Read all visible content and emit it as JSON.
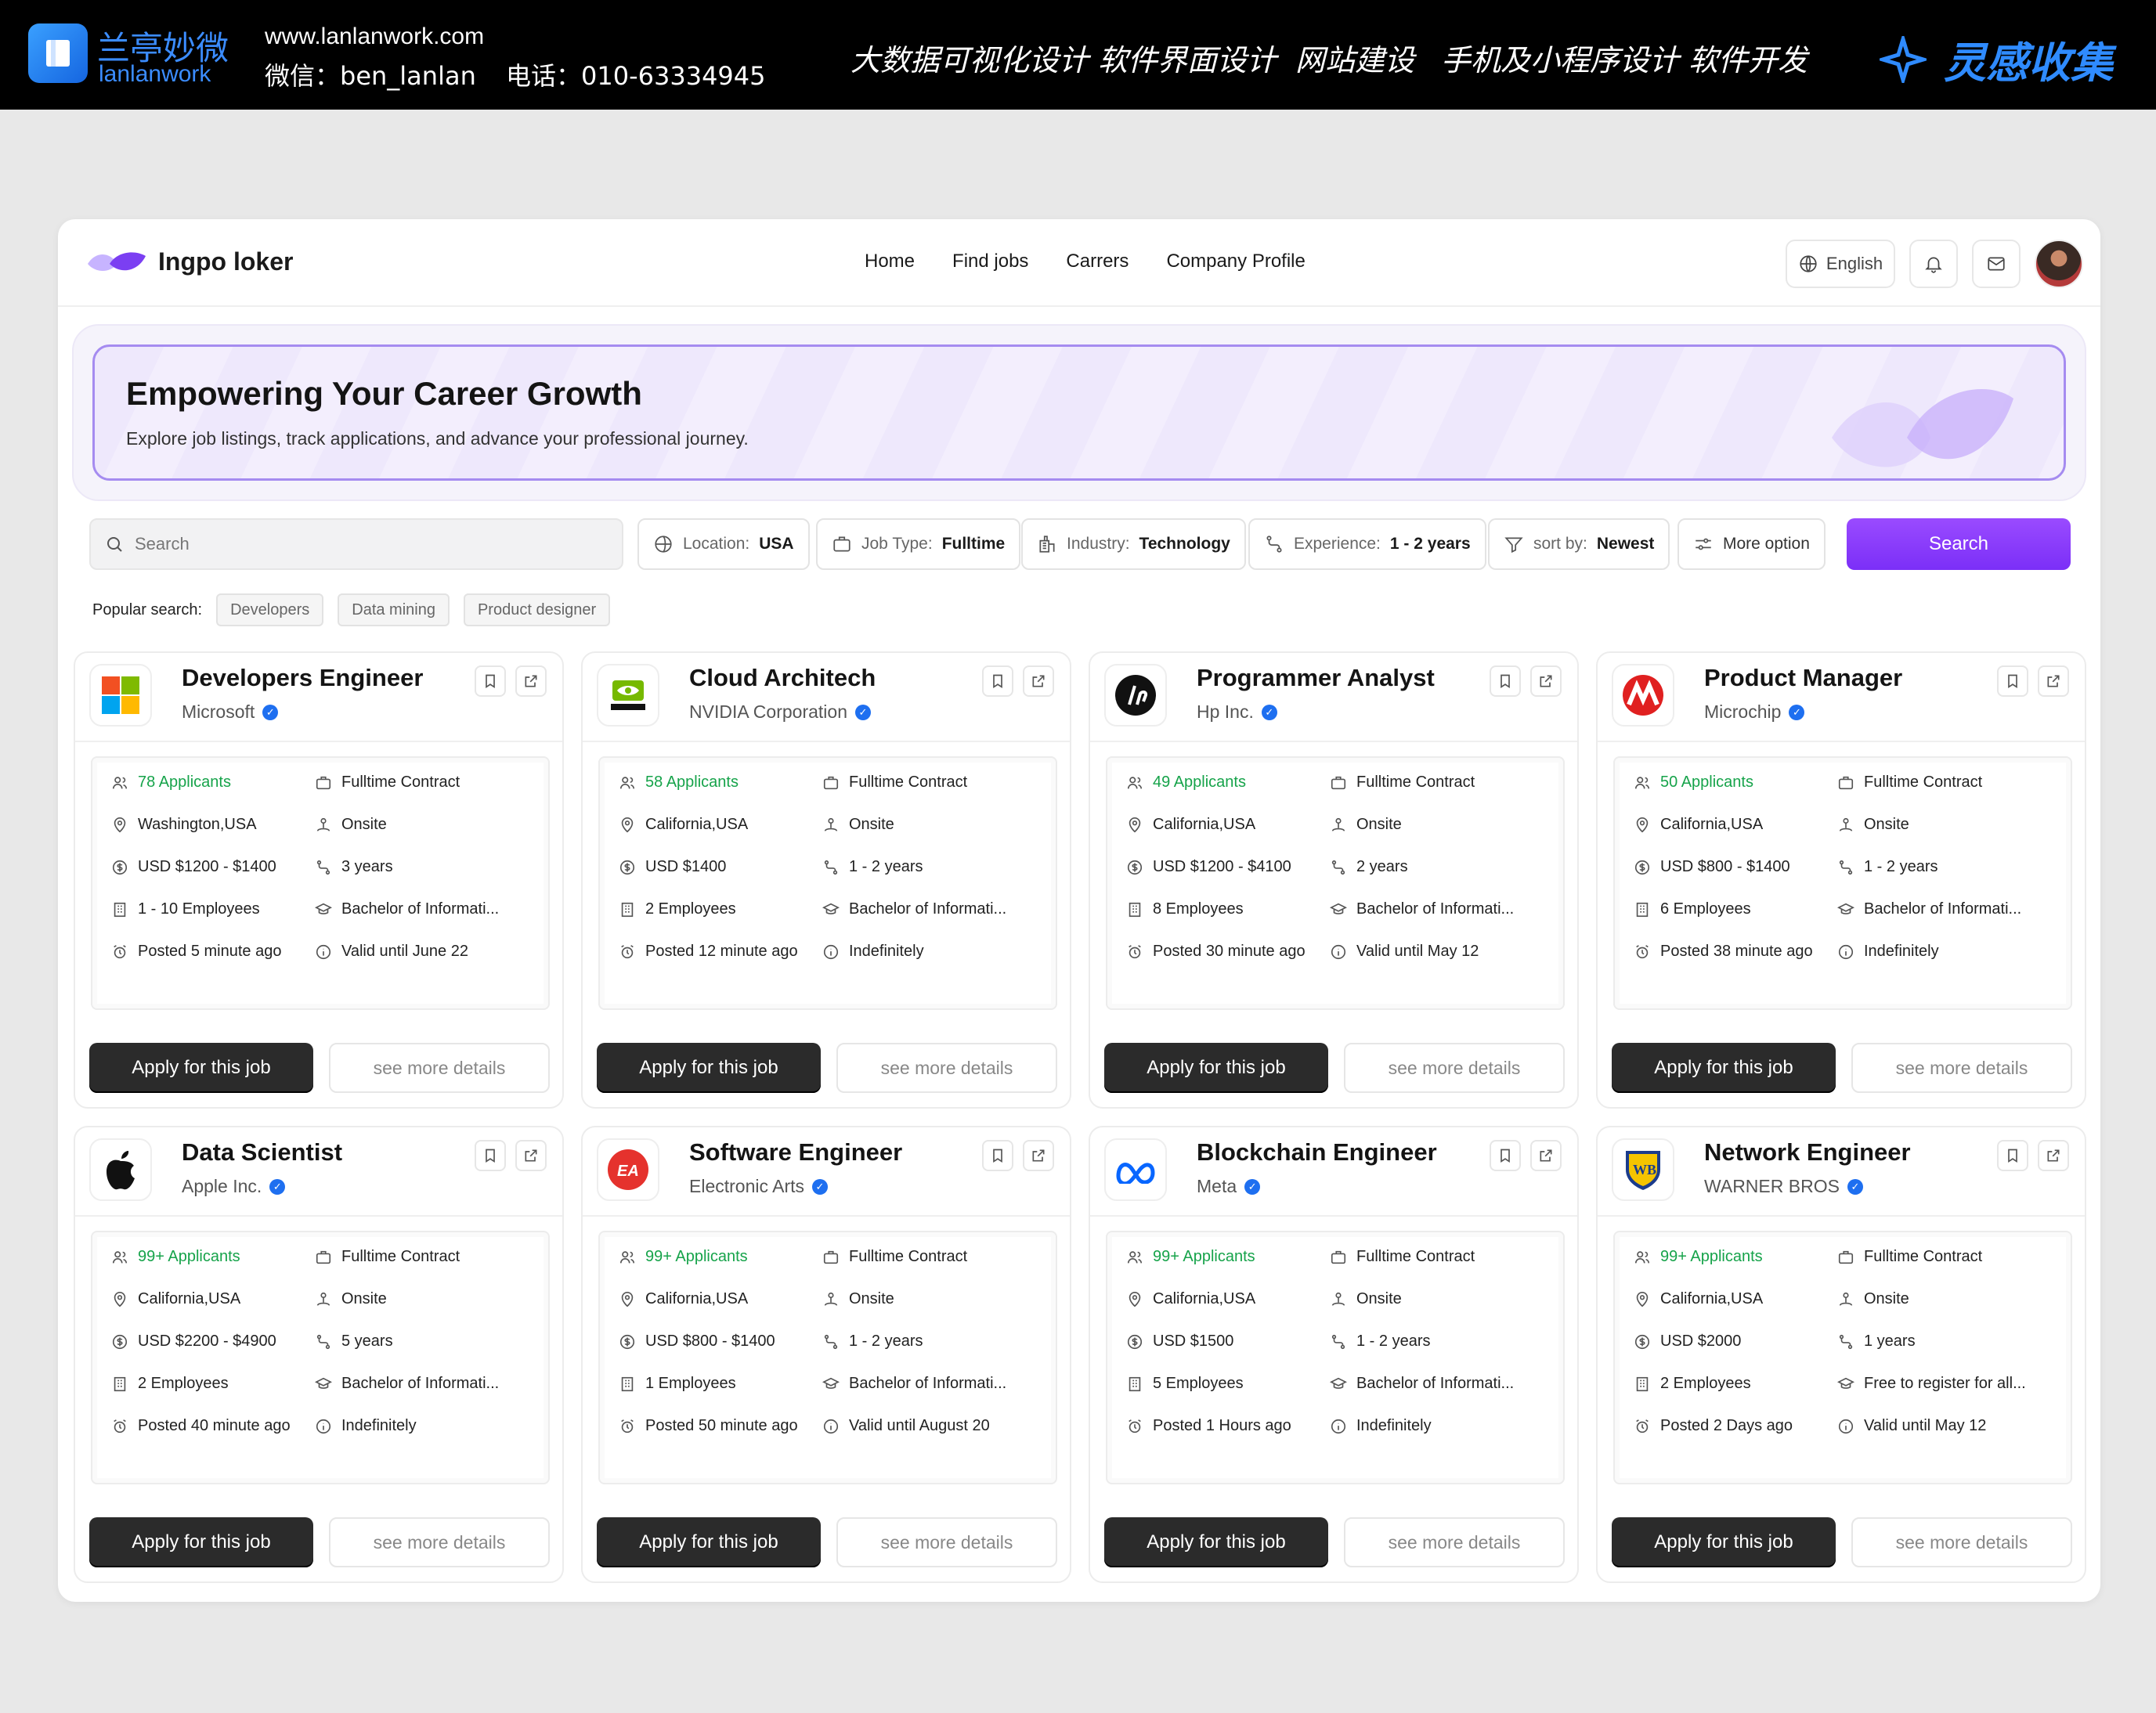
{
  "banner": {
    "brand_cn": "兰亭妙微",
    "brand_en": "lanlanwork",
    "site": "www.lanlanwork.com",
    "wechat": "微信：ben_lanlan",
    "phone": "电话：010-63334945",
    "services": [
      "大数据可视化设计",
      "软件界面设计",
      "网站建设",
      "手机及小程序设计",
      "软件开发"
    ],
    "inspiration": "灵感收集"
  },
  "nav": {
    "logo_name": "Ingpo loker",
    "menu": [
      "Home",
      "Find jobs",
      "Carrers",
      "Company Profile"
    ],
    "language": "English"
  },
  "hero": {
    "title": "Empowering Your Career Growth",
    "subtitle": "Explore job listings, track applications, and advance your professional journey."
  },
  "search": {
    "placeholder": "Search",
    "filters": [
      {
        "label": "Location:",
        "value": "USA",
        "icon": "globe-icon"
      },
      {
        "label": "Job Type:",
        "value": "Fulltime",
        "icon": "briefcase-icon"
      },
      {
        "label": "Industry:",
        "value": "Technology",
        "icon": "building-icon"
      },
      {
        "label": "Experience:",
        "value": "1 - 2 years",
        "icon": "route-icon"
      },
      {
        "label": "sort by:",
        "value": "Newest",
        "icon": "filter-icon"
      },
      {
        "label": "",
        "value": "More option",
        "icon": "sliders-icon"
      }
    ],
    "button": "Search"
  },
  "popular": {
    "label": "Popular search:",
    "tags": [
      "Developers",
      "Data mining",
      "Product designer"
    ]
  },
  "jobs": [
    {
      "title": "Developers Engineer",
      "company": "Microsoft",
      "logo": "microsoft-logo",
      "applicants": "78 Applicants",
      "location": "Washington,USA",
      "salary": "USD $1200 - $1400",
      "employees": "1 - 10 Employees",
      "posted": "Posted 5 minute ago",
      "contract": "Fulltime Contract",
      "mode": "Onsite",
      "experience": "3 years",
      "education": "Bachelor of Informati...",
      "validity": "Valid until June 22",
      "apply": "Apply for this job",
      "more": "see more details"
    },
    {
      "title": "Cloud Architech",
      "company": "NVIDIA Corporation",
      "logo": "nvidia-logo",
      "applicants": "58 Applicants",
      "location": "California,USA",
      "salary": "USD $1400",
      "employees": "2 Employees",
      "posted": "Posted 12 minute ago",
      "contract": "Fulltime Contract",
      "mode": "Onsite",
      "experience": "1 - 2 years",
      "education": "Bachelor of Informati...",
      "validity": "Indefinitely",
      "apply": "Apply for this job",
      "more": "see more details"
    },
    {
      "title": "Programmer Analyst",
      "company": "Hp Inc.",
      "logo": "hp-logo",
      "applicants": "49 Applicants",
      "location": "California,USA",
      "salary": "USD $1200 - $4100",
      "employees": "8 Employees",
      "posted": "Posted 30 minute ago",
      "contract": "Fulltime Contract",
      "mode": "Onsite",
      "experience": "2 years",
      "education": "Bachelor of Informati...",
      "validity": "Valid until May 12",
      "apply": "Apply for this job",
      "more": "see more details"
    },
    {
      "title": "Product Manager",
      "company": "Microchip",
      "logo": "microchip-logo",
      "applicants": "50 Applicants",
      "location": "California,USA",
      "salary": "USD $800 - $1400",
      "employees": "6 Employees",
      "posted": "Posted 38 minute ago",
      "contract": "Fulltime Contract",
      "mode": "Onsite",
      "experience": "1 - 2 years",
      "education": "Bachelor of Informati...",
      "validity": "Indefinitely",
      "apply": "Apply for this job",
      "more": "see more details"
    },
    {
      "title": "Data Scientist",
      "company": "Apple Inc.",
      "logo": "apple-logo",
      "applicants": "99+ Applicants",
      "location": "California,USA",
      "salary": "USD $2200 - $4900",
      "employees": "2 Employees",
      "posted": "Posted 40 minute ago",
      "contract": "Fulltime Contract",
      "mode": "Onsite",
      "experience": "5 years",
      "education": "Bachelor of Informati...",
      "validity": "Indefinitely",
      "apply": "Apply for this job",
      "more": "see more details"
    },
    {
      "title": "Software Engineer",
      "company": "Electronic Arts",
      "logo": "ea-logo",
      "applicants": "99+ Applicants",
      "location": "California,USA",
      "salary": "USD $800 - $1400",
      "employees": "1 Employees",
      "posted": "Posted 50 minute ago",
      "contract": "Fulltime Contract",
      "mode": "Onsite",
      "experience": "1 - 2 years",
      "education": "Bachelor of Informati...",
      "validity": "Valid until August 20",
      "apply": "Apply for this job",
      "more": "see more details"
    },
    {
      "title": "Blockchain Engineer",
      "company": "Meta",
      "logo": "meta-logo",
      "applicants": "99+ Applicants",
      "location": "California,USA",
      "salary": "USD $1500",
      "employees": "5 Employees",
      "posted": "Posted 1 Hours ago",
      "contract": "Fulltime Contract",
      "mode": "Onsite",
      "experience": "1 - 2 years",
      "education": "Bachelor of Informati...",
      "validity": "Indefinitely",
      "apply": "Apply for this job",
      "more": "see more details"
    },
    {
      "title": "Network Engineer",
      "company": "WARNER BROS",
      "logo": "warner-bros-logo",
      "applicants": "99+ Applicants",
      "location": "California,USA",
      "salary": "USD $2000",
      "employees": "2 Employees",
      "posted": "Posted 2 Days ago",
      "contract": "Fulltime Contract",
      "mode": "Onsite",
      "experience": "1 years",
      "education": "Free to register for all...",
      "validity": "Valid until May 12",
      "apply": "Apply for this job",
      "more": "see more details"
    }
  ],
  "colors": {
    "accent": "#8a3dfb",
    "applicants": "#16a34a",
    "verified": "#1e6ff0"
  }
}
